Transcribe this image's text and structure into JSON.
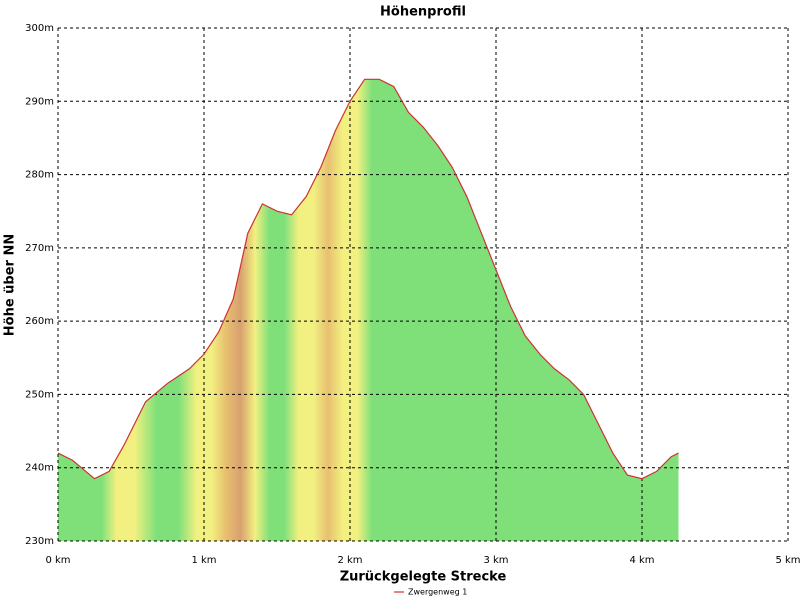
{
  "chart_data": {
    "type": "area",
    "title": "Höhenprofil",
    "x_label": "Zurückgelegte Strecke",
    "y_label": "Höhe über NN",
    "x": [
      0,
      0.1,
      0.25,
      0.35,
      0.45,
      0.6,
      0.75,
      0.9,
      1.0,
      1.1,
      1.2,
      1.3,
      1.4,
      1.5,
      1.6,
      1.7,
      1.8,
      1.9,
      2.0,
      2.1,
      2.2,
      2.3,
      2.4,
      2.5,
      2.6,
      2.7,
      2.8,
      2.9,
      3.0,
      3.1,
      3.2,
      3.3,
      3.4,
      3.5,
      3.6,
      3.7,
      3.8,
      3.9,
      4.0,
      4.1,
      4.2,
      4.25
    ],
    "series": [
      {
        "name": "Zwergenweg 1",
        "color": "#cc3333",
        "values": [
          242,
          241,
          238.5,
          239.5,
          243,
          249,
          251.5,
          253.5,
          255.5,
          258.5,
          263,
          272,
          276,
          275,
          274.5,
          277,
          281,
          286,
          290,
          293,
          293,
          292,
          288.5,
          286.5,
          284,
          281,
          277,
          272,
          267,
          262,
          258,
          255.5,
          253.5,
          252,
          250,
          246,
          242,
          239,
          238.5,
          239.5,
          241.5,
          242
        ]
      }
    ],
    "xlim": [
      0,
      5
    ],
    "ylim": [
      230,
      300
    ],
    "xticks": [
      {
        "value": 0,
        "label": "0 km"
      },
      {
        "value": 1,
        "label": "1 km"
      },
      {
        "value": 2,
        "label": "2 km"
      },
      {
        "value": 3,
        "label": "3 km"
      },
      {
        "value": 4,
        "label": "4 km"
      },
      {
        "value": 5,
        "label": "5 km"
      }
    ],
    "yticks": [
      {
        "value": 230,
        "label": "230m"
      },
      {
        "value": 240,
        "label": "240m"
      },
      {
        "value": 250,
        "label": "250m"
      },
      {
        "value": 260,
        "label": "260m"
      },
      {
        "value": 270,
        "label": "270m"
      },
      {
        "value": 280,
        "label": "280m"
      },
      {
        "value": 290,
        "label": "290m"
      },
      {
        "value": 300,
        "label": "300m"
      }
    ],
    "grid": true,
    "legend": "bottom"
  }
}
